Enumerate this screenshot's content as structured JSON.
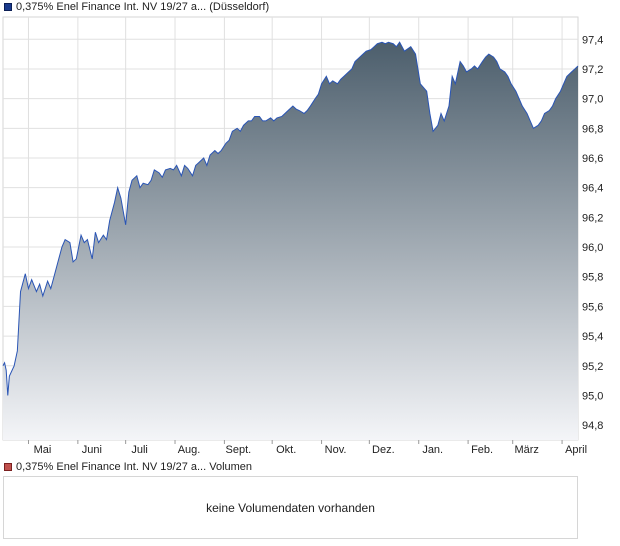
{
  "legend": {
    "price_label": "0,375% Enel Finance Int. NV 19/27 a... (Düsseldorf)",
    "volume_label": "0,375% Enel Finance Int. NV 19/27 a... Volumen"
  },
  "volume_panel": {
    "message": "keine Volumendaten vorhanden"
  },
  "colors": {
    "line": "#2a55b5",
    "fill_top": "#4c5e6c",
    "fill_bottom": "#f4f5f8",
    "grid": "#e0e0e0",
    "swatch_price": "#1a3a8c",
    "swatch_volume": "#c0504d"
  },
  "chart_data": {
    "type": "area",
    "title": "",
    "xlabel": "",
    "ylabel": "",
    "ylim": [
      94.7,
      97.55
    ],
    "y_ticks": [
      "94,8",
      "95,0",
      "95,2",
      "95,4",
      "95,6",
      "95,8",
      "96,0",
      "96,2",
      "96,4",
      "96,6",
      "96,8",
      "97,0",
      "97,2",
      "97,4"
    ],
    "x_ticks": [
      "Mai",
      "Juni",
      "Juli",
      "Aug.",
      "Sept.",
      "Okt.",
      "Nov.",
      "Dez.",
      "Jan.",
      "Feb.",
      "März",
      "April"
    ],
    "grid": true,
    "series": [
      {
        "x": [
          "2024-04-15",
          "2024-04-16",
          "2024-04-17",
          "2024-04-18",
          "2024-04-19",
          "2024-04-22",
          "2024-04-24",
          "2024-04-26",
          "2024-04-29",
          "2024-05-01",
          "2024-05-03",
          "2024-05-06",
          "2024-05-08",
          "2024-05-10",
          "2024-05-13",
          "2024-05-15",
          "2024-05-17",
          "2024-05-20",
          "2024-05-22",
          "2024-05-24",
          "2024-05-27",
          "2024-05-29",
          "2024-05-31",
          "2024-06-03",
          "2024-06-05",
          "2024-06-07",
          "2024-06-10",
          "2024-06-12",
          "2024-06-14",
          "2024-06-17",
          "2024-06-19",
          "2024-06-21",
          "2024-06-24",
          "2024-06-26",
          "2024-06-28",
          "2024-07-01",
          "2024-07-03",
          "2024-07-05",
          "2024-07-08",
          "2024-07-10",
          "2024-07-12",
          "2024-07-15",
          "2024-07-17",
          "2024-07-19",
          "2024-07-22",
          "2024-07-24",
          "2024-07-26",
          "2024-07-29",
          "2024-07-31",
          "2024-08-02",
          "2024-08-05",
          "2024-08-07",
          "2024-08-09",
          "2024-08-12",
          "2024-08-14",
          "2024-08-16",
          "2024-08-19",
          "2024-08-21",
          "2024-08-23",
          "2024-08-26",
          "2024-08-28",
          "2024-08-30",
          "2024-09-02",
          "2024-09-04",
          "2024-09-06",
          "2024-09-09",
          "2024-09-11",
          "2024-09-13",
          "2024-09-16",
          "2024-09-18",
          "2024-09-20",
          "2024-09-23",
          "2024-09-25",
          "2024-09-27",
          "2024-09-30",
          "2024-10-02",
          "2024-10-04",
          "2024-10-07",
          "2024-10-09",
          "2024-10-11",
          "2024-10-14",
          "2024-10-16",
          "2024-10-18",
          "2024-10-21",
          "2024-10-23",
          "2024-10-25",
          "2024-10-28",
          "2024-10-30",
          "2024-11-01",
          "2024-11-04",
          "2024-11-06",
          "2024-11-08",
          "2024-11-11",
          "2024-11-13",
          "2024-11-15",
          "2024-11-18",
          "2024-11-20",
          "2024-11-22",
          "2024-11-25",
          "2024-11-27",
          "2024-11-29",
          "2024-12-02",
          "2024-12-04",
          "2024-12-06",
          "2024-12-09",
          "2024-12-11",
          "2024-12-13",
          "2024-12-16",
          "2024-12-18",
          "2024-12-20",
          "2024-12-23",
          "2024-12-27",
          "2024-12-30",
          "2025-01-02",
          "2025-01-06",
          "2025-01-08",
          "2025-01-10",
          "2025-01-13",
          "2025-01-15",
          "2025-01-17",
          "2025-01-20",
          "2025-01-22",
          "2025-01-24",
          "2025-01-27",
          "2025-01-29",
          "2025-01-31",
          "2025-02-03",
          "2025-02-05",
          "2025-02-07",
          "2025-02-10",
          "2025-02-12",
          "2025-02-14",
          "2025-02-17",
          "2025-02-19",
          "2025-02-21",
          "2025-02-24",
          "2025-02-26",
          "2025-02-28",
          "2025-03-03",
          "2025-03-05",
          "2025-03-07",
          "2025-03-10",
          "2025-03-12",
          "2025-03-14",
          "2025-03-17",
          "2025-03-19",
          "2025-03-21",
          "2025-03-24",
          "2025-03-26",
          "2025-03-28",
          "2025-03-31",
          "2025-04-02",
          "2025-04-04",
          "2025-04-07",
          "2025-04-09",
          "2025-04-11"
        ],
        "values": [
          95.2,
          95.22,
          95.17,
          95.0,
          95.13,
          95.2,
          95.3,
          95.7,
          95.82,
          95.72,
          95.78,
          95.7,
          95.75,
          95.67,
          95.77,
          95.72,
          95.8,
          95.92,
          96.0,
          96.05,
          96.03,
          95.9,
          95.92,
          96.08,
          96.03,
          96.05,
          95.92,
          96.1,
          96.03,
          96.08,
          96.05,
          96.18,
          96.3,
          96.4,
          96.33,
          96.15,
          96.37,
          96.45,
          96.48,
          96.4,
          96.43,
          96.42,
          96.45,
          96.52,
          96.5,
          96.47,
          96.52,
          96.53,
          96.52,
          96.55,
          96.48,
          96.55,
          96.53,
          96.48,
          96.55,
          96.57,
          96.6,
          96.55,
          96.62,
          96.65,
          96.63,
          96.65,
          96.7,
          96.72,
          96.78,
          96.8,
          96.78,
          96.82,
          96.85,
          96.85,
          96.88,
          96.88,
          96.85,
          96.85,
          96.87,
          96.85,
          96.87,
          96.88,
          96.9,
          96.92,
          96.95,
          96.93,
          96.92,
          96.9,
          96.92,
          96.95,
          97.0,
          97.03,
          97.1,
          97.15,
          97.1,
          97.12,
          97.1,
          97.13,
          97.15,
          97.18,
          97.2,
          97.25,
          97.28,
          97.3,
          97.32,
          97.33,
          97.35,
          97.37,
          97.38,
          97.37,
          97.38,
          97.37,
          97.35,
          97.38,
          97.32,
          97.35,
          97.3,
          97.1,
          97.05,
          96.9,
          96.78,
          96.82,
          96.9,
          96.85,
          96.95,
          97.15,
          97.1,
          97.25,
          97.22,
          97.18,
          97.2,
          97.22,
          97.2,
          97.25,
          97.28,
          97.3,
          97.28,
          97.25,
          97.2,
          97.18,
          97.15,
          97.1,
          97.05,
          97.0,
          96.95,
          96.9,
          96.85,
          96.8,
          96.82,
          96.85,
          96.9,
          96.92,
          96.95,
          97.0,
          97.05,
          97.1,
          97.15,
          97.18,
          97.2,
          97.22
        ]
      }
    ]
  }
}
